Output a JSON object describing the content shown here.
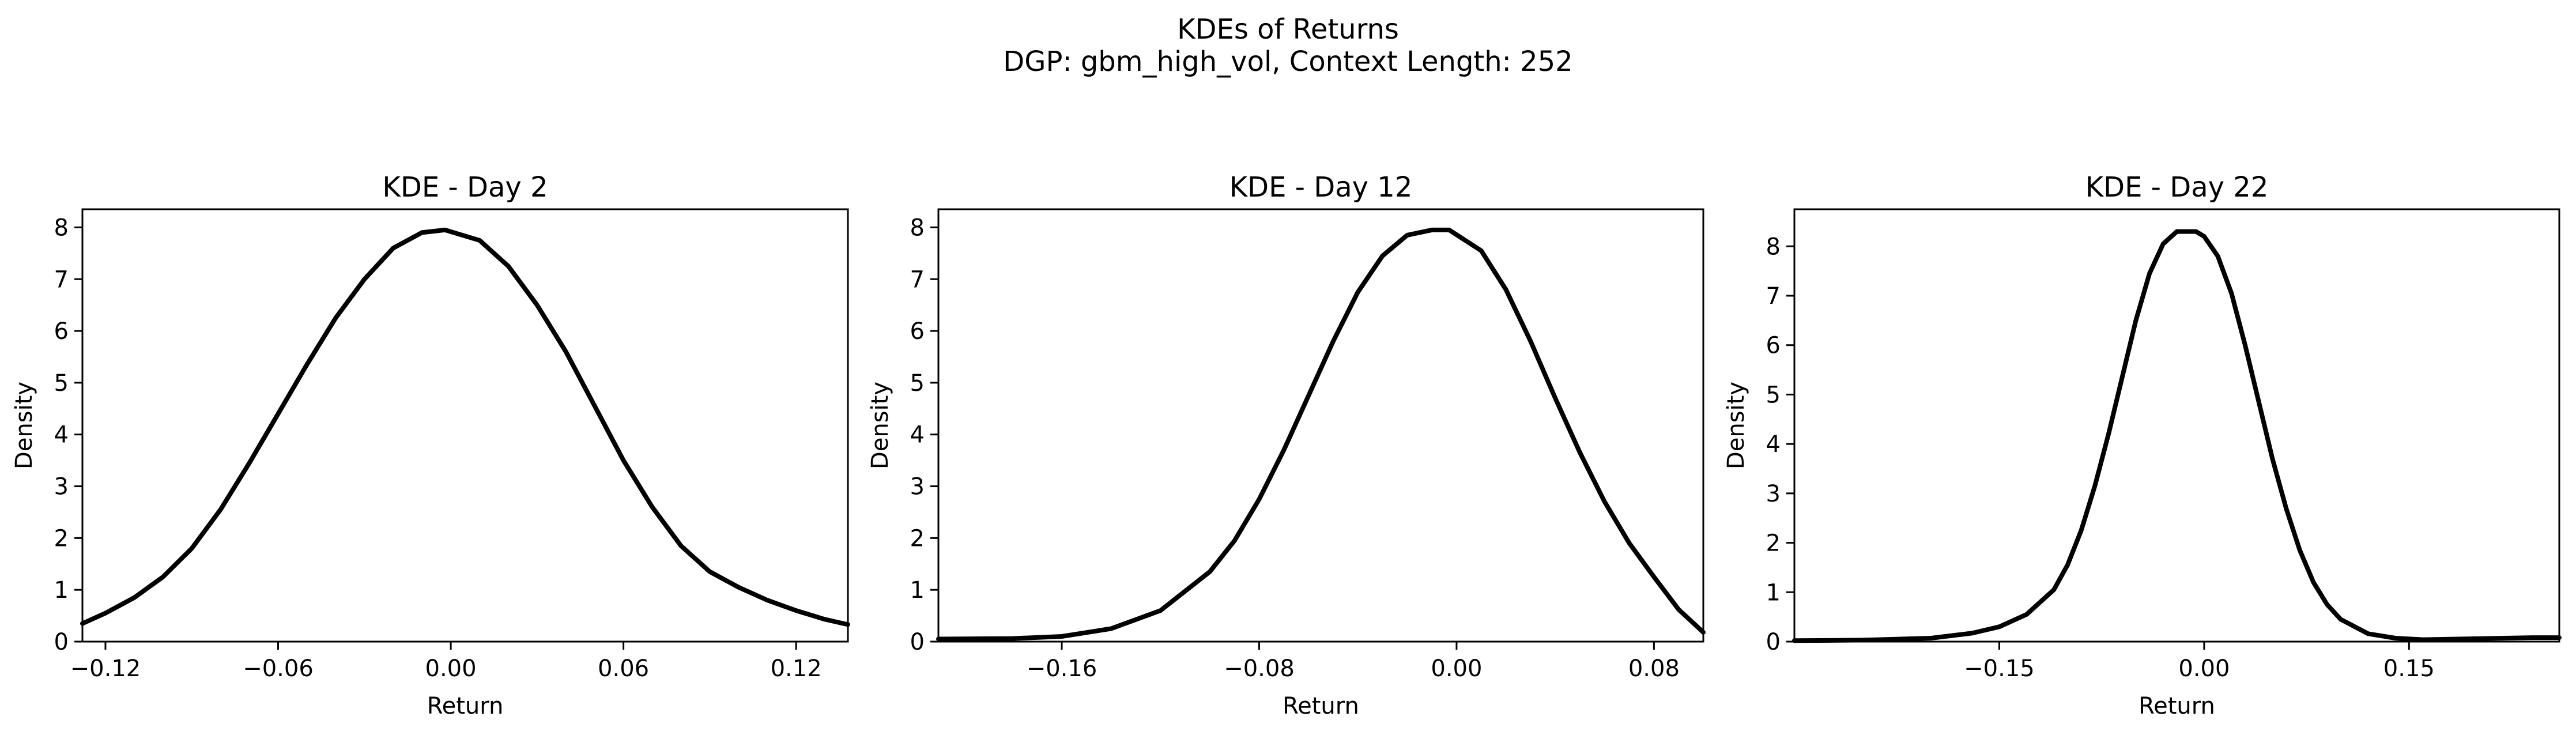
{
  "figure": {
    "title": "KDEs of Returns",
    "subtitle": "DGP: gbm_high_vol, Context Length: 252"
  },
  "chart_data": [
    {
      "type": "line",
      "title": "KDE - Day 2",
      "xlabel": "Return",
      "ylabel": "Density",
      "xlim": [
        -0.128,
        0.138
      ],
      "ylim": [
        0,
        8.35
      ],
      "xticks": [
        -0.12,
        -0.06,
        0.0,
        0.06,
        0.12
      ],
      "xtick_labels": [
        "−0.12",
        "−0.06",
        "0.00",
        "0.06",
        "0.12"
      ],
      "yticks": [
        0,
        1,
        2,
        3,
        4,
        5,
        6,
        7,
        8
      ],
      "ytick_labels": [
        "0",
        "1",
        "2",
        "3",
        "4",
        "5",
        "6",
        "7",
        "8"
      ],
      "grid": false,
      "line_color": "#000000",
      "x": [
        -0.128,
        -0.12,
        -0.11,
        -0.1,
        -0.09,
        -0.08,
        -0.07,
        -0.06,
        -0.05,
        -0.04,
        -0.03,
        -0.02,
        -0.01,
        -0.002,
        0.01,
        0.02,
        0.03,
        0.04,
        0.05,
        0.06,
        0.07,
        0.08,
        0.09,
        0.1,
        0.11,
        0.12,
        0.13,
        0.138
      ],
      "y": [
        0.35,
        0.55,
        0.85,
        1.25,
        1.8,
        2.55,
        3.45,
        4.4,
        5.35,
        6.25,
        7.0,
        7.6,
        7.9,
        7.95,
        7.75,
        7.25,
        6.5,
        5.6,
        4.55,
        3.5,
        2.6,
        1.85,
        1.35,
        1.05,
        0.8,
        0.6,
        0.43,
        0.33
      ]
    },
    {
      "type": "line",
      "title": "KDE - Day 12",
      "xlabel": "Return",
      "ylabel": "Density",
      "xlim": [
        -0.21,
        0.1
      ],
      "ylim": [
        0,
        8.35
      ],
      "xticks": [
        -0.16,
        -0.08,
        0.0,
        0.08
      ],
      "xtick_labels": [
        "−0.16",
        "−0.08",
        "0.00",
        "0.08"
      ],
      "yticks": [
        0,
        1,
        2,
        3,
        4,
        5,
        6,
        7,
        8
      ],
      "ytick_labels": [
        "0",
        "1",
        "2",
        "3",
        "4",
        "5",
        "6",
        "7",
        "8"
      ],
      "grid": false,
      "line_color": "#000000",
      "x": [
        -0.21,
        -0.18,
        -0.16,
        -0.14,
        -0.12,
        -0.1,
        -0.09,
        -0.08,
        -0.07,
        -0.06,
        -0.05,
        -0.04,
        -0.03,
        -0.02,
        -0.01,
        -0.003,
        0.01,
        0.02,
        0.03,
        0.04,
        0.05,
        0.06,
        0.07,
        0.08,
        0.09,
        0.1
      ],
      "y": [
        0.05,
        0.06,
        0.1,
        0.25,
        0.6,
        1.35,
        1.95,
        2.75,
        3.7,
        4.75,
        5.8,
        6.75,
        7.45,
        7.85,
        7.95,
        7.95,
        7.55,
        6.8,
        5.8,
        4.7,
        3.65,
        2.7,
        1.9,
        1.25,
        0.62,
        0.18
      ]
    },
    {
      "type": "line",
      "title": "KDE - Day 22",
      "xlabel": "Return",
      "ylabel": "Density",
      "xlim": [
        -0.3,
        0.26
      ],
      "ylim": [
        0,
        8.75
      ],
      "xticks": [
        -0.15,
        0.0,
        0.15
      ],
      "xtick_labels": [
        "−0.15",
        "0.00",
        "0.15"
      ],
      "yticks": [
        0,
        1,
        2,
        3,
        4,
        5,
        6,
        7,
        8
      ],
      "ytick_labels": [
        "0",
        "1",
        "2",
        "3",
        "4",
        "5",
        "6",
        "7",
        "8"
      ],
      "grid": false,
      "line_color": "#000000",
      "x": [
        -0.3,
        -0.25,
        -0.2,
        -0.17,
        -0.15,
        -0.13,
        -0.11,
        -0.1,
        -0.09,
        -0.08,
        -0.07,
        -0.06,
        -0.05,
        -0.04,
        -0.03,
        -0.02,
        -0.01,
        -0.006,
        0.0,
        0.01,
        0.02,
        0.03,
        0.04,
        0.05,
        0.06,
        0.07,
        0.08,
        0.09,
        0.1,
        0.12,
        0.14,
        0.16,
        0.18,
        0.2,
        0.22,
        0.24,
        0.26
      ],
      "y": [
        0.02,
        0.03,
        0.07,
        0.17,
        0.3,
        0.55,
        1.05,
        1.55,
        2.25,
        3.15,
        4.2,
        5.35,
        6.5,
        7.45,
        8.05,
        8.3,
        8.3,
        8.3,
        8.2,
        7.8,
        7.05,
        6.0,
        4.85,
        3.7,
        2.7,
        1.85,
        1.2,
        0.75,
        0.45,
        0.16,
        0.07,
        0.04,
        0.05,
        0.06,
        0.07,
        0.08,
        0.08
      ]
    }
  ]
}
